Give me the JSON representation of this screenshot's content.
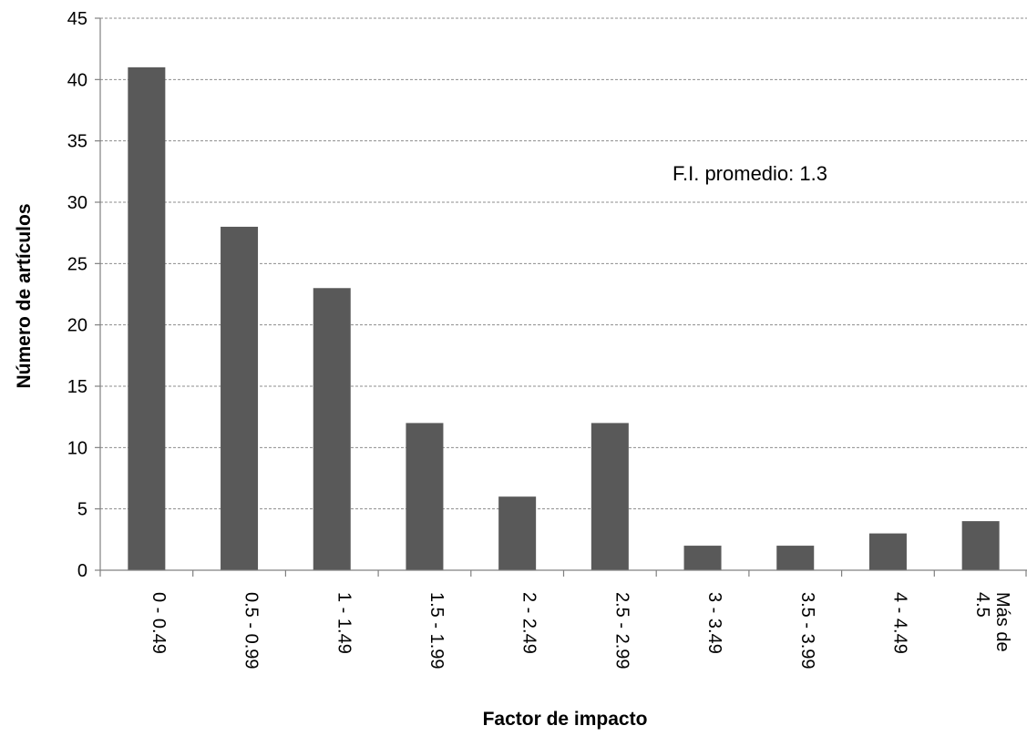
{
  "chart_data": {
    "type": "bar",
    "categories": [
      "0 - 0.49",
      "0.5 - 0.99",
      "1 - 1.49",
      "1.5 - 1.99",
      "2 - 2.49",
      "2.5 - 2.99",
      "3 - 3.49",
      "3.5 - 3.99",
      "4 - 4.49",
      "Más de 4.5"
    ],
    "category_lines": [
      [
        "0 - 0.49"
      ],
      [
        "0.5 - 0.99"
      ],
      [
        "1 - 1.49"
      ],
      [
        "1.5 - 1.99"
      ],
      [
        "2 - 2.49"
      ],
      [
        "2.5 - 2.99"
      ],
      [
        "3 - 3.49"
      ],
      [
        "3.5 - 3.99"
      ],
      [
        "4 - 4.49"
      ],
      [
        "Más de",
        "4.5"
      ]
    ],
    "values": [
      41,
      28,
      23,
      12,
      6,
      12,
      2,
      2,
      3,
      4
    ],
    "title": "",
    "xlabel": "Factor de impacto",
    "ylabel": "Número de artículos",
    "ylim": [
      0,
      45
    ],
    "yticks": [
      0,
      5,
      10,
      15,
      20,
      25,
      30,
      35,
      40,
      45
    ],
    "grid": true,
    "annotation": "F.I. promedio: 1.3",
    "colors": {
      "bar": "#595959",
      "grid": "#8c8c8c",
      "axis": "#808080"
    }
  }
}
